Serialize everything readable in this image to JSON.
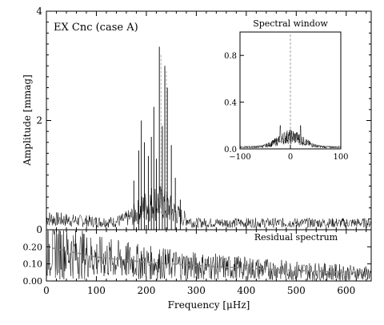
{
  "chart_data": [
    {
      "type": "line",
      "panel": "main amplitude spectrum",
      "label": "EX Cnc (case A)",
      "ylabel": "Amplitude [mmag]",
      "xlim": [
        0,
        650
      ],
      "ylim": [
        0,
        4
      ],
      "xticks": [
        0,
        100,
        200,
        300,
        400,
        500,
        600
      ],
      "yticks": [
        0,
        2,
        4
      ],
      "peaks": [
        {
          "x": 175,
          "y": 0.9
        },
        {
          "x": 185,
          "y": 1.45
        },
        {
          "x": 190,
          "y": 2.0
        },
        {
          "x": 196,
          "y": 1.6
        },
        {
          "x": 204,
          "y": 1.35
        },
        {
          "x": 210,
          "y": 1.7
        },
        {
          "x": 215,
          "y": 2.25
        },
        {
          "x": 220,
          "y": 1.3
        },
        {
          "x": 226,
          "y": 3.35
        },
        {
          "x": 232,
          "y": 1.9
        },
        {
          "x": 237,
          "y": 3.0
        },
        {
          "x": 242,
          "y": 2.6
        },
        {
          "x": 250,
          "y": 1.55
        },
        {
          "x": 258,
          "y": 0.95
        },
        {
          "x": 268,
          "y": 0.55
        }
      ]
    },
    {
      "type": "line",
      "panel": "inset",
      "label": "Spectral window",
      "xlim": [
        -100,
        100
      ],
      "ylim": [
        0,
        1.0
      ],
      "xticks": [
        -100,
        0,
        100
      ],
      "yticks": [
        0.0,
        0.4,
        0.8
      ],
      "central_peak": {
        "x": 0,
        "y": 1.0
      },
      "side_lobes": [
        {
          "x": -20,
          "y": 0.2
        },
        {
          "x": -12,
          "y": 0.14
        },
        {
          "x": 12,
          "y": 0.14
        },
        {
          "x": 20,
          "y": 0.2
        }
      ]
    },
    {
      "type": "line",
      "panel": "residual",
      "label": "Residual spectrum",
      "xlabel": "Frequency [μHz]",
      "xlim": [
        0,
        650
      ],
      "ylim": [
        0,
        0.3
      ],
      "xticks": [
        0,
        100,
        200,
        300,
        400,
        500,
        600
      ],
      "yticks": [
        0.0,
        0.1,
        0.2
      ],
      "ytick_labels": [
        "0.00",
        "0.10",
        "0.20"
      ],
      "trend": [
        {
          "x": 0,
          "y": 0.2
        },
        {
          "x": 100,
          "y": 0.14
        },
        {
          "x": 200,
          "y": 0.11
        },
        {
          "x": 300,
          "y": 0.09
        },
        {
          "x": 400,
          "y": 0.075
        },
        {
          "x": 500,
          "y": 0.062
        },
        {
          "x": 650,
          "y": 0.045
        }
      ]
    }
  ]
}
